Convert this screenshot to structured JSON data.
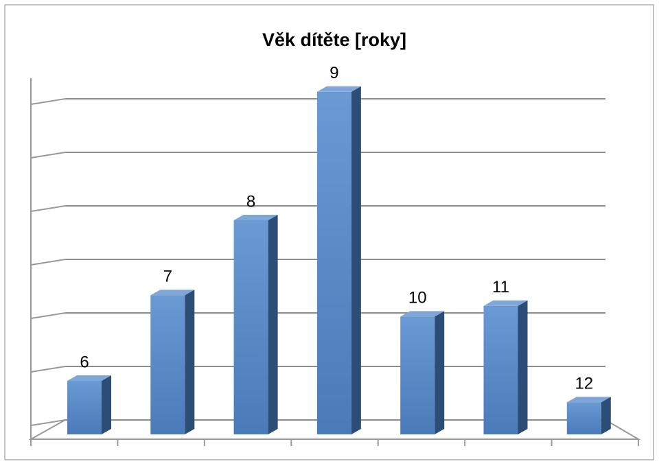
{
  "chart_data": {
    "type": "bar3d",
    "title": "Věk dítěte [roky]",
    "categories": [
      "6",
      "7",
      "8",
      "9",
      "10",
      "11",
      "12"
    ],
    "values": [
      5,
      13,
      20,
      32,
      11,
      12,
      3
    ],
    "color": "#4f81bd",
    "ylim": [
      0,
      30
    ],
    "yticks": [
      0,
      5,
      10,
      15,
      20,
      25,
      30
    ],
    "grid": true
  }
}
